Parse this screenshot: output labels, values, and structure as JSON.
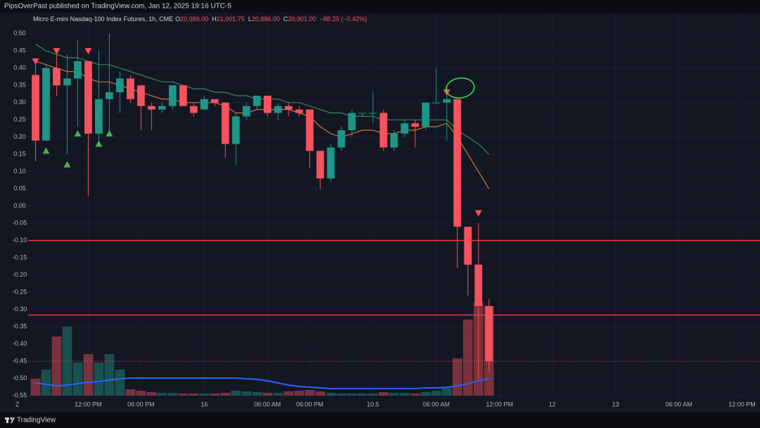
{
  "header": {
    "title": "PipsOverPast published on TradingView.com, Jan 12, 2025 19:16 UTC-5"
  },
  "footer": {
    "brand": "TradingView"
  },
  "chart_data": {
    "type": "candlestick",
    "legend": {
      "symbol": "Micro E-mini Nasdaq-100 Index Futures, 1h, CME",
      "items": [
        {
          "label": "O",
          "value": "20,989.00"
        },
        {
          "label": "H",
          "value": "21,001.75"
        },
        {
          "label": "L",
          "value": "20,886.00"
        },
        {
          "label": "C",
          "value": "20,901.00"
        }
      ],
      "change": "−88.25 (−0.42%)"
    },
    "up_color": "#1f9587",
    "down_color": "#f7525f",
    "open": [
      0.38,
      0.19,
      0.4,
      0.35,
      0.37,
      0.42,
      0.21,
      0.31,
      0.33,
      0.37,
      0.35,
      0.29,
      0.28,
      0.29,
      0.35,
      0.29,
      0.28,
      0.31,
      0.3,
      0.18,
      0.26,
      0.29,
      0.32,
      0.27,
      0.29,
      0.28,
      0.28,
      0.16,
      0.08,
      0.17,
      0.22,
      0.27,
      0.27,
      0.27,
      0.17,
      0.21,
      0.24,
      0.23,
      0.3,
      0.3,
      0.31,
      -0.06,
      -0.17,
      -0.29
    ],
    "high": [
      0.42,
      0.41,
      0.44,
      0.44,
      0.48,
      0.42,
      0.45,
      0.5,
      0.39,
      0.38,
      0.35,
      0.3,
      0.3,
      0.35,
      0.35,
      0.3,
      0.32,
      0.31,
      0.3,
      0.27,
      0.3,
      0.32,
      0.32,
      0.3,
      0.3,
      0.29,
      0.28,
      0.16,
      0.18,
      0.23,
      0.28,
      0.27,
      0.33,
      0.28,
      0.22,
      0.25,
      0.25,
      0.3,
      0.4,
      0.35,
      0.31,
      -0.06,
      -0.05,
      -0.27
    ],
    "low": [
      0.13,
      0.19,
      0.32,
      0.15,
      0.23,
      0.03,
      0.17,
      0.21,
      0.27,
      0.3,
      0.22,
      0.22,
      0.27,
      0.28,
      0.29,
      0.26,
      0.28,
      0.29,
      0.14,
      0.12,
      0.25,
      0.28,
      0.26,
      0.25,
      0.26,
      0.26,
      0.11,
      0.05,
      0.07,
      0.16,
      0.2,
      0.26,
      0.24,
      0.16,
      0.16,
      0.2,
      0.17,
      0.22,
      0.3,
      0.19,
      -0.18,
      -0.26,
      -0.5,
      -0.48
    ],
    "close": [
      0.19,
      0.4,
      0.35,
      0.37,
      0.42,
      0.21,
      0.31,
      0.33,
      0.37,
      0.31,
      0.29,
      0.28,
      0.29,
      0.35,
      0.29,
      0.27,
      0.31,
      0.3,
      0.18,
      0.26,
      0.29,
      0.32,
      0.27,
      0.29,
      0.28,
      0.27,
      0.16,
      0.08,
      0.17,
      0.22,
      0.27,
      0.27,
      0.27,
      0.17,
      0.21,
      0.24,
      0.23,
      0.3,
      0.3,
      0.31,
      -0.06,
      -0.17,
      -0.29,
      -0.45
    ],
    "ma_series": [
      {
        "color": "#3f8f6e",
        "values": [
          0.47,
          0.45,
          0.44,
          0.43,
          0.43,
          0.42,
          0.41,
          0.41,
          0.4,
          0.39,
          0.38,
          0.37,
          0.36,
          0.36,
          0.35,
          0.34,
          0.34,
          0.33,
          0.33,
          0.32,
          0.32,
          0.31,
          0.31,
          0.31,
          0.3,
          0.3,
          0.29,
          0.28,
          0.27,
          0.27,
          0.26,
          0.26,
          0.26,
          0.25,
          0.25,
          0.25,
          0.25,
          0.25,
          0.25,
          0.25,
          0.22,
          0.2,
          0.18,
          0.15
        ]
      },
      {
        "color": "#e0803a",
        "values": [
          0.42,
          0.41,
          0.4,
          0.39,
          0.39,
          0.37,
          0.36,
          0.36,
          0.35,
          0.34,
          0.33,
          0.32,
          0.31,
          0.31,
          0.3,
          0.3,
          0.3,
          0.3,
          0.29,
          0.27,
          0.27,
          0.28,
          0.28,
          0.28,
          0.28,
          0.27,
          0.26,
          0.23,
          0.21,
          0.2,
          0.21,
          0.22,
          0.22,
          0.21,
          0.21,
          0.22,
          0.22,
          0.23,
          0.23,
          0.24,
          0.2,
          0.15,
          0.1,
          0.05
        ]
      }
    ],
    "volume": [
      24,
      37,
      84,
      98,
      47,
      59,
      47,
      59,
      37,
      9,
      7,
      5,
      4,
      4,
      3,
      3,
      3,
      3,
      4,
      7,
      6,
      5,
      4,
      4,
      6,
      7,
      8,
      6,
      4,
      3,
      3,
      3,
      3,
      5,
      4,
      4,
      3,
      5,
      7,
      12,
      53,
      108,
      132,
      127
    ],
    "volume_ma": {
      "color": "#2962ff",
      "values": [
        18,
        16,
        14,
        15,
        17,
        19,
        20,
        22,
        24,
        25,
        25,
        25,
        25,
        25,
        25,
        25,
        25,
        25,
        25,
        25,
        24,
        23,
        21,
        18,
        15,
        13,
        12,
        11,
        10,
        10,
        10,
        10,
        10,
        10,
        10,
        10,
        10,
        11,
        11,
        12,
        14,
        17,
        21,
        24
      ]
    },
    "sell_signals": {
      "color": "#f7525f",
      "x": [
        0,
        2,
        5,
        39,
        40,
        42
      ],
      "y": [
        0.42,
        0.45,
        0.45,
        0.33,
        0.11,
        -0.02
      ]
    },
    "buy_signals": {
      "color": "#4caf50",
      "x": [
        1,
        3,
        4,
        6,
        7
      ],
      "y": [
        0.16,
        0.12,
        0.21,
        0.18,
        0.21
      ]
    },
    "hlines": {
      "color": "#f23645",
      "values": [
        -0.1,
        -0.316
      ]
    },
    "price_line": -0.45,
    "xlim": [
      -0.7,
      68.7
    ],
    "ylim": [
      -0.56,
      0.52
    ],
    "xticks": [
      {
        "value": 5,
        "label": "12:00 PM"
      },
      {
        "value": 10,
        "label": "06:00 PM"
      },
      16,
      {
        "value": 22,
        "label": "06:00 AM"
      },
      {
        "value": 26,
        "label": "06:00 PM"
      },
      10.5,
      {
        "value": 38,
        "label": "06:00 AM"
      },
      {
        "value": 44,
        "label": "12:00 PM"
      },
      12,
      13,
      {
        "value": 61,
        "label": "06:00 AM"
      },
      {
        "value": 67,
        "label": "12:00 PM"
      }
    ],
    "xtick_positions": null,
    "yticks": [
      {
        "value": 0.5,
        "label": "0.50"
      },
      {
        "value": 0.45,
        "label": "0.45"
      },
      {
        "value": 0.4,
        "label": "0.40"
      },
      {
        "value": 0.35,
        "label": "0.35"
      },
      {
        "value": 0.3,
        "label": "0.30"
      },
      {
        "value": 0.25,
        "label": "0.25"
      },
      {
        "value": 0.2,
        "label": "0.20"
      },
      {
        "value": 0.15,
        "label": "0.15"
      },
      {
        "value": 0.1,
        "label": "0.10"
      },
      {
        "value": 0.05,
        "label": "0.05"
      },
      {
        "value": 0,
        "label": "0.00"
      },
      {
        "value": -0.05,
        "label": "-0.05"
      },
      {
        "value": -0.1,
        "label": "-0.10"
      },
      {
        "value": -0.15,
        "label": "-0.15"
      },
      {
        "value": -0.2,
        "label": "-0.20"
      },
      {
        "value": -0.25,
        "label": "-0.25"
      },
      {
        "value": -0.3,
        "label": "-0.30"
      },
      {
        "value": -0.35,
        "label": "-0.35"
      },
      {
        "value": -0.4,
        "label": "-0.40"
      },
      {
        "value": -0.45,
        "label": "-0.45"
      },
      {
        "value": -0.5,
        "label": "-0.50"
      },
      {
        "value": -0.55,
        "label": "-0.55"
      }
    ],
    "grid": true
  }
}
